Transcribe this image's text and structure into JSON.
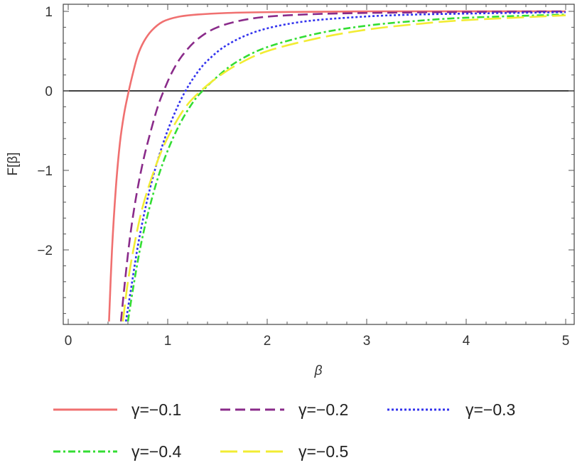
{
  "chart_data": {
    "type": "line",
    "xlabel": "β",
    "ylabel": "F[β]",
    "xlim": [
      0,
      5
    ],
    "ylim": [
      -2.9,
      1.05
    ],
    "xticks": [
      0,
      1,
      2,
      3,
      4,
      5
    ],
    "yticks": [
      -2,
      -1,
      0,
      1
    ],
    "legend_position": "bottom",
    "zero_line": true,
    "series": [
      {
        "name": "γ=−0.1",
        "color": "#f07070",
        "dash": "solid",
        "x": [
          0.41,
          0.44,
          0.48,
          0.52,
          0.56,
          0.6,
          0.65,
          0.7,
          0.76,
          0.84,
          0.95,
          1.1,
          1.3,
          1.6,
          2.0,
          3.0,
          5.0
        ],
        "y": [
          -2.9,
          -2.0,
          -1.2,
          -0.65,
          -0.3,
          -0.05,
          0.22,
          0.45,
          0.62,
          0.76,
          0.87,
          0.93,
          0.96,
          0.98,
          0.99,
          1.0,
          1.0
        ]
      },
      {
        "name": "γ=−0.2",
        "color": "#8a2b8a",
        "dash": "dashed",
        "x": [
          0.53,
          0.57,
          0.62,
          0.68,
          0.75,
          0.82,
          0.9,
          0.97,
          1.05,
          1.15,
          1.3,
          1.5,
          1.8,
          2.2,
          3.0,
          5.0
        ],
        "y": [
          -2.9,
          -2.4,
          -1.85,
          -1.35,
          -0.9,
          -0.55,
          -0.2,
          0.03,
          0.25,
          0.45,
          0.65,
          0.8,
          0.9,
          0.95,
          0.98,
          1.0
        ]
      },
      {
        "name": "γ=−0.3",
        "color": "#3333ee",
        "dash": "dotted",
        "x": [
          0.58,
          0.63,
          0.7,
          0.78,
          0.87,
          0.97,
          1.07,
          1.17,
          1.28,
          1.4,
          1.6,
          1.9,
          2.3,
          2.8,
          3.5,
          5.0
        ],
        "y": [
          -2.9,
          -2.5,
          -1.95,
          -1.45,
          -1.0,
          -0.6,
          -0.28,
          -0.02,
          0.2,
          0.38,
          0.58,
          0.75,
          0.86,
          0.92,
          0.96,
          0.99
        ]
      },
      {
        "name": "γ=−0.4",
        "color": "#33dd33",
        "dash": "dashdot",
        "x": [
          0.6,
          0.65,
          0.72,
          0.8,
          0.9,
          1.0,
          1.12,
          1.25,
          1.35,
          1.5,
          1.7,
          2.0,
          2.5,
          3.0,
          3.5,
          4.0,
          5.0
        ],
        "y": [
          -2.9,
          -2.5,
          -2.0,
          -1.55,
          -1.1,
          -0.75,
          -0.42,
          -0.15,
          0.0,
          0.18,
          0.37,
          0.55,
          0.72,
          0.82,
          0.88,
          0.92,
          0.96
        ]
      },
      {
        "name": "γ=−0.5",
        "color": "#f2ec33",
        "dash": "longdash",
        "x": [
          0.55,
          0.6,
          0.67,
          0.75,
          0.85,
          0.95,
          1.07,
          1.2,
          1.35,
          1.5,
          1.7,
          2.0,
          2.5,
          3.0,
          3.5,
          4.0,
          5.0
        ],
        "y": [
          -2.9,
          -2.4,
          -1.9,
          -1.45,
          -1.05,
          -0.72,
          -0.42,
          -0.17,
          0.02,
          0.17,
          0.33,
          0.5,
          0.66,
          0.77,
          0.84,
          0.89,
          0.95
        ]
      }
    ]
  }
}
